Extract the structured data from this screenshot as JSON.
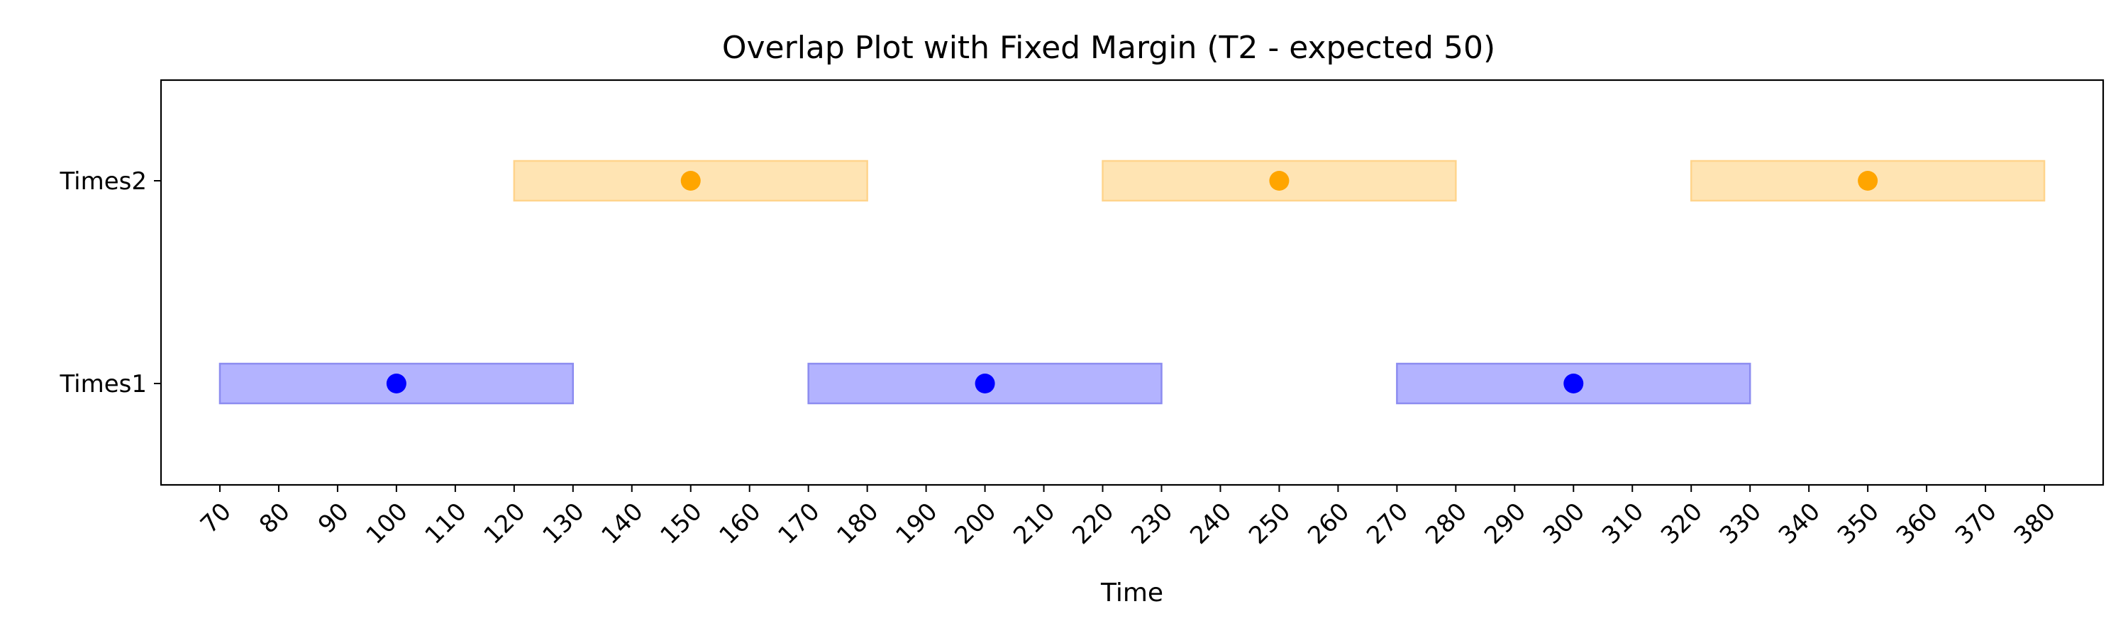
{
  "chart_data": {
    "type": "bar",
    "subtype": "interval-timeline",
    "title": "Overlap Plot with Fixed Margin (T2 - expected 50)",
    "xlabel": "Time",
    "ylabel": "",
    "xlim": [
      60,
      390
    ],
    "x_ticks": [
      70,
      80,
      90,
      100,
      110,
      120,
      130,
      140,
      150,
      160,
      170,
      180,
      190,
      200,
      210,
      220,
      230,
      240,
      250,
      260,
      270,
      280,
      290,
      300,
      310,
      320,
      330,
      340,
      350,
      360,
      370,
      380
    ],
    "x_tick_rotation": 45,
    "categories": [
      "Times1",
      "Times2"
    ],
    "grid": false,
    "legend": "none",
    "series": [
      {
        "category": "Times1",
        "color": "#0000ff",
        "fill_color": "#b3b3ff",
        "edge_color": "#8c8cf0",
        "points": [
          100,
          200,
          300
        ],
        "intervals": [
          [
            70,
            130
          ],
          [
            170,
            230
          ],
          [
            270,
            330
          ]
        ]
      },
      {
        "category": "Times2",
        "color": "#ffa500",
        "fill_color": "#ffe4b3",
        "edge_color": "#ffd48c",
        "points": [
          150,
          250,
          350
        ],
        "intervals": [
          [
            120,
            180
          ],
          [
            220,
            280
          ],
          [
            320,
            380
          ]
        ]
      }
    ]
  }
}
